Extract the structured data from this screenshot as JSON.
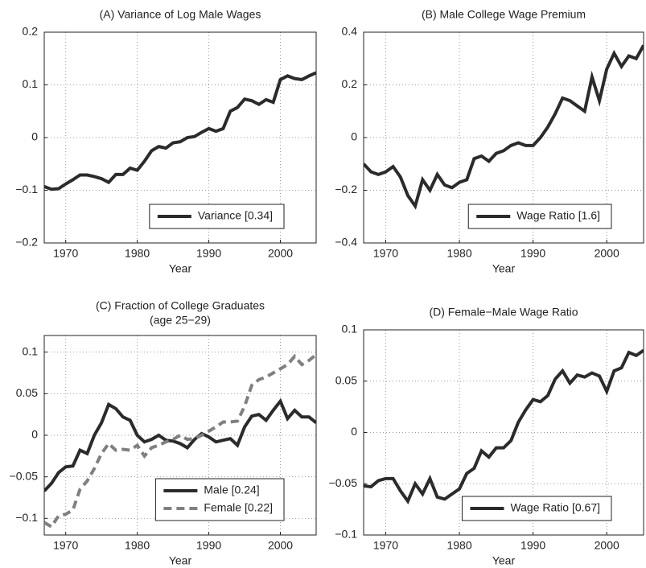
{
  "chart_data": [
    {
      "type": "line",
      "title": "(A) Variance of Log Male Wages",
      "xlabel": "Year",
      "x": [
        1967,
        1968,
        1969,
        1970,
        1971,
        1972,
        1973,
        1974,
        1975,
        1976,
        1977,
        1978,
        1979,
        1980,
        1981,
        1982,
        1983,
        1984,
        1985,
        1986,
        1987,
        1988,
        1989,
        1990,
        1991,
        1992,
        1993,
        1994,
        1995,
        1996,
        1997,
        1998,
        1999,
        2000,
        2001,
        2002,
        2003,
        2004,
        2005
      ],
      "series": [
        {
          "name": "Variance  [0.34]",
          "color": "#2b2b2b",
          "style": "solid",
          "values": [
            -0.093,
            -0.098,
            -0.097,
            -0.088,
            -0.08,
            -0.071,
            -0.071,
            -0.074,
            -0.078,
            -0.085,
            -0.07,
            -0.07,
            -0.058,
            -0.062,
            -0.045,
            -0.025,
            -0.017,
            -0.02,
            -0.01,
            -0.008,
            0.0,
            0.002,
            0.01,
            0.017,
            0.012,
            0.017,
            0.05,
            0.057,
            0.073,
            0.07,
            0.063,
            0.072,
            0.067,
            0.11,
            0.117,
            0.112,
            0.11,
            0.117,
            0.123
          ]
        }
      ],
      "xlim": [
        1967,
        2005
      ],
      "xticks": [
        1970,
        1980,
        1990,
        2000
      ],
      "ylim": [
        -0.2,
        0.2
      ],
      "yticks": [
        {
          "value": -0.2,
          "label": "−0.2"
        },
        {
          "value": -0.1,
          "label": "−0.1"
        },
        0,
        0.1,
        0.2
      ],
      "grid": true,
      "legend": "lower right"
    },
    {
      "type": "line",
      "title": "(B) Male College Wage Premium",
      "xlabel": "Year",
      "x": [
        1967,
        1968,
        1969,
        1970,
        1971,
        1972,
        1973,
        1974,
        1975,
        1976,
        1977,
        1978,
        1979,
        1980,
        1981,
        1982,
        1983,
        1984,
        1985,
        1986,
        1987,
        1988,
        1989,
        1990,
        1991,
        1992,
        1993,
        1994,
        1995,
        1996,
        1997,
        1998,
        1999,
        2000,
        2001,
        2002,
        2003,
        2004,
        2005
      ],
      "series": [
        {
          "name": "Wage Ratio  [1.6]",
          "color": "#2b2b2b",
          "style": "solid",
          "values": [
            -0.1,
            -0.13,
            -0.14,
            -0.13,
            -0.11,
            -0.15,
            -0.22,
            -0.26,
            -0.16,
            -0.2,
            -0.14,
            -0.18,
            -0.19,
            -0.17,
            -0.16,
            -0.08,
            -0.07,
            -0.09,
            -0.06,
            -0.05,
            -0.03,
            -0.02,
            -0.03,
            -0.03,
            0.0,
            0.04,
            0.09,
            0.15,
            0.14,
            0.12,
            0.1,
            0.23,
            0.14,
            0.26,
            0.32,
            0.27,
            0.31,
            0.3,
            0.35
          ]
        }
      ],
      "xlim": [
        1967,
        2005
      ],
      "xticks": [
        1970,
        1980,
        1990,
        2000
      ],
      "ylim": [
        -0.4,
        0.4
      ],
      "yticks": [
        {
          "value": -0.4,
          "label": "−0.4"
        },
        {
          "value": -0.2,
          "label": "−0.2"
        },
        0,
        0.2,
        0.4
      ],
      "grid": true,
      "legend": "lower right"
    },
    {
      "type": "line",
      "title": "(C) Fraction of College Graduates",
      "subtitle": "(age 25−29)",
      "xlabel": "Year",
      "x": [
        1967,
        1968,
        1969,
        1970,
        1971,
        1972,
        1973,
        1974,
        1975,
        1976,
        1977,
        1978,
        1979,
        1980,
        1981,
        1982,
        1983,
        1984,
        1985,
        1986,
        1987,
        1988,
        1989,
        1990,
        1991,
        1992,
        1993,
        1994,
        1995,
        1996,
        1997,
        1998,
        1999,
        2000,
        2001,
        2002,
        2003,
        2004,
        2005
      ],
      "series": [
        {
          "name": "Male [0.24]",
          "color": "#2b2b2b",
          "style": "solid",
          "values": [
            -0.067,
            -0.058,
            -0.045,
            -0.038,
            -0.037,
            -0.018,
            -0.022,
            0.0,
            0.015,
            0.037,
            0.032,
            0.022,
            0.018,
            0.0,
            -0.008,
            -0.005,
            0.0,
            -0.006,
            -0.007,
            -0.01,
            -0.015,
            -0.005,
            0.002,
            -0.002,
            -0.008,
            -0.006,
            -0.004,
            -0.012,
            0.01,
            0.023,
            0.025,
            0.018,
            0.03,
            0.041,
            0.02,
            0.03,
            0.022,
            0.022,
            0.015
          ]
        },
        {
          "name": "Female [0.22]",
          "color": "#808080",
          "style": "dashed",
          "values": [
            -0.105,
            -0.11,
            -0.097,
            -0.095,
            -0.09,
            -0.065,
            -0.055,
            -0.04,
            -0.022,
            -0.01,
            -0.018,
            -0.017,
            -0.018,
            -0.012,
            -0.025,
            -0.015,
            -0.012,
            -0.008,
            -0.005,
            0.0,
            -0.005,
            -0.004,
            0.0,
            0.005,
            0.01,
            0.016,
            0.016,
            0.017,
            0.035,
            0.06,
            0.067,
            0.07,
            0.075,
            0.08,
            0.085,
            0.095,
            0.085,
            0.09,
            0.097
          ]
        }
      ],
      "xlim": [
        1967,
        2005
      ],
      "xticks": [
        1970,
        1980,
        1990,
        2000
      ],
      "ylim": [
        -0.12,
        0.12
      ],
      "yticks": [
        {
          "value": -0.1,
          "label": "−0.1"
        },
        {
          "value": -0.05,
          "label": "−0.05"
        },
        0,
        0.05,
        0.1
      ],
      "grid": true,
      "legend": "lower right"
    },
    {
      "type": "line",
      "title": "(D) Female−Male Wage Ratio",
      "xlabel": "Year",
      "x": [
        1967,
        1968,
        1969,
        1970,
        1971,
        1972,
        1973,
        1974,
        1975,
        1976,
        1977,
        1978,
        1979,
        1980,
        1981,
        1982,
        1983,
        1984,
        1985,
        1986,
        1987,
        1988,
        1989,
        1990,
        1991,
        1992,
        1993,
        1994,
        1995,
        1996,
        1997,
        1998,
        1999,
        2000,
        2001,
        2002,
        2003,
        2004,
        2005
      ],
      "series": [
        {
          "name": "Wage Ratio  [0.67]",
          "color": "#2b2b2b",
          "style": "solid",
          "values": [
            -0.052,
            -0.053,
            -0.047,
            -0.045,
            -0.045,
            -0.057,
            -0.067,
            -0.05,
            -0.06,
            -0.045,
            -0.063,
            -0.065,
            -0.06,
            -0.055,
            -0.04,
            -0.035,
            -0.018,
            -0.024,
            -0.015,
            -0.015,
            -0.008,
            0.01,
            0.022,
            0.032,
            0.03,
            0.036,
            0.052,
            0.06,
            0.048,
            0.056,
            0.054,
            0.058,
            0.055,
            0.04,
            0.06,
            0.063,
            0.078,
            0.075,
            0.08
          ]
        }
      ],
      "xlim": [
        1967,
        2005
      ],
      "xticks": [
        1970,
        1980,
        1990,
        2000
      ],
      "ylim": [
        -0.1,
        0.1
      ],
      "yticks": [
        {
          "value": -0.1,
          "label": "−0.1"
        },
        {
          "value": -0.05,
          "label": "−0.05"
        },
        0,
        0.05,
        0.1
      ],
      "grid": true,
      "legend": "lower right"
    }
  ]
}
